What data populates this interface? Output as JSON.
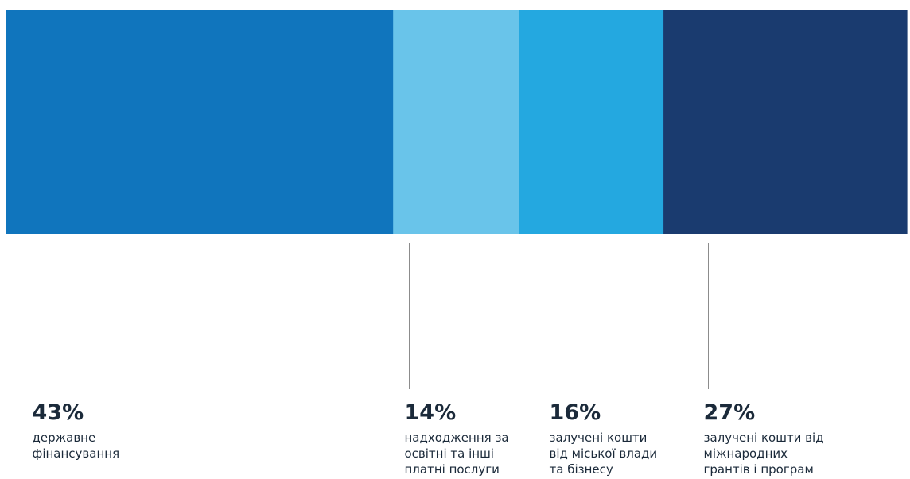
{
  "chart_data": {
    "type": "bar",
    "subtype": "stacked-100-percent",
    "unit": "%",
    "categories": [
      "державне фінансування",
      "надходження за освітні та інші платні послуги",
      "залучені кошти від міської влади та бізнесу",
      "залучені кошти від міжнародних грантів і програм"
    ],
    "values": [
      43,
      14,
      16,
      27
    ],
    "segments": [
      {
        "value": 43,
        "label": "43%",
        "desc_lines": [
          "державне",
          "фінансування"
        ],
        "color": "#1075bd"
      },
      {
        "value": 14,
        "label": "14%",
        "desc_lines": [
          "надходження за",
          "освітні та інші",
          "платні послуги"
        ],
        "color": "#69c4ea"
      },
      {
        "value": 16,
        "label": "16%",
        "desc_lines": [
          "залучені кошти",
          "від міської влади",
          "та бізнесу"
        ],
        "color": "#24a8e0"
      },
      {
        "value": 27,
        "label": "27%",
        "desc_lines": [
          "залучені кошти від",
          "міжнародних",
          "грантів і програм"
        ],
        "color": "#1a3b6f"
      }
    ]
  }
}
